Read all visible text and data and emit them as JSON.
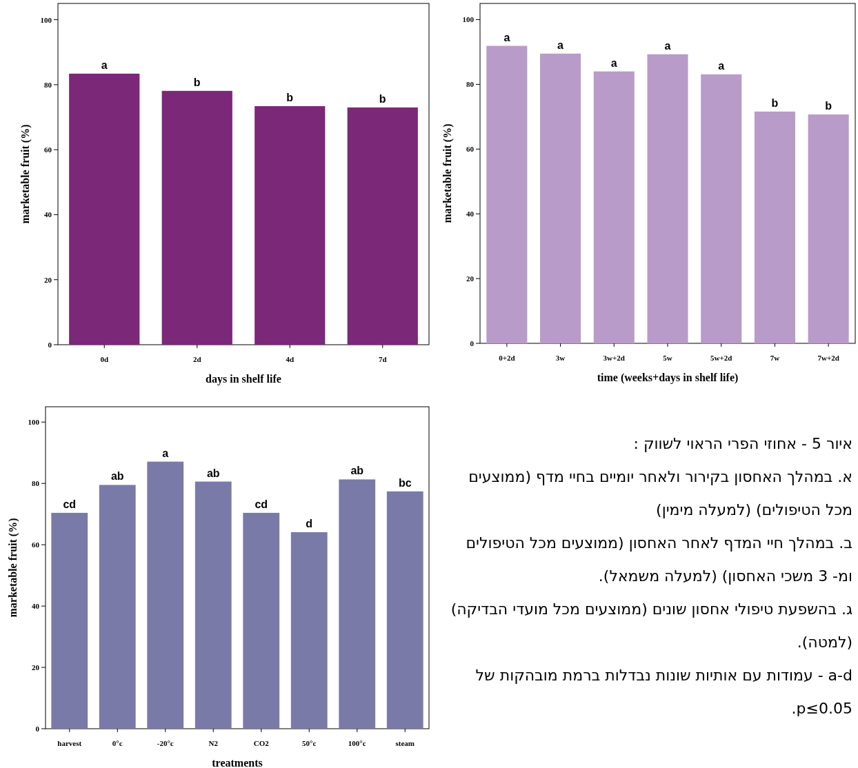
{
  "chart_data": [
    {
      "type": "bar",
      "xlabel": "days in shelf life",
      "ylabel": "marketable fruit (%)",
      "categories": [
        "0d",
        "2d",
        "4d",
        "7d"
      ],
      "values": [
        83.4,
        78.1,
        73.4,
        73.0
      ],
      "value_labels": [
        "a",
        "b",
        "b",
        "b"
      ],
      "color": "#7b2879",
      "ylim": [
        0,
        105
      ],
      "yticks": [
        0,
        20,
        40,
        60,
        80,
        100
      ]
    },
    {
      "type": "bar",
      "xlabel": "time (weeks+days in shelf life)",
      "ylabel": "marketable fruit (%)",
      "categories": [
        "0+2d",
        "3w",
        "3w+2d",
        "5w",
        "5w+2d",
        "7w",
        "7w+2d"
      ],
      "values": [
        91.9,
        89.5,
        84.0,
        89.3,
        83.1,
        71.6,
        70.7
      ],
      "value_labels": [
        "a",
        "a",
        "a",
        "a",
        "a",
        "b",
        "b"
      ],
      "color": "#b89bc9",
      "ylim": [
        0,
        105
      ],
      "yticks": [
        0,
        20,
        40,
        60,
        80,
        100
      ]
    },
    {
      "type": "bar",
      "xlabel": "treatments",
      "ylabel": "marketable fruit (%)",
      "categories": [
        "harvest",
        "0°c",
        "-20°c",
        "N2",
        "CO2",
        "50°c",
        "100°c",
        "steam"
      ],
      "values": [
        70.4,
        79.5,
        87.1,
        80.6,
        70.4,
        64.1,
        81.3,
        77.4
      ],
      "value_labels": [
        "cd",
        "ab",
        "a",
        "ab",
        "cd",
        "d",
        "ab",
        "bc"
      ],
      "color": "#7a7aa8",
      "ylim": [
        0,
        105
      ],
      "yticks": [
        0,
        20,
        40,
        60,
        80,
        100
      ]
    },
    {
      "type": "other",
      "title": "איור 5 - אחוזי הפרי הראוי לשווק :",
      "annotations": [
        "א. במהלך האחסון בקירור ולאחר יומיים בחיי מדף (ממוצעים מכל הטיפולים) (למעלה מימין)",
        "ב. במהלך חיי המדף לאחר האחסון (ממוצעים מכל הטיפולים ומ- 3 משכי האחסון) (למעלה משמאל).",
        "ג. בהשפעת טיפולי אחסון שונים (ממוצעים מכל מועדי הבדיקה) (למטה).",
        "a-d - עמודות עם אותיות שונות נבדלות ברמת מובהקות של p≤0.05."
      ]
    }
  ]
}
